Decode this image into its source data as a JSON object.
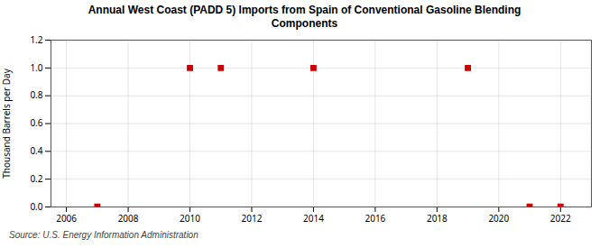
{
  "chart_data": {
    "type": "scatter",
    "title": "Annual West Coast (PADD 5) Imports from Spain of Conventional Gasoline Blending\nComponents",
    "ylabel": "Thousand Barrels per Day",
    "source": "Source: U.S. Energy Information Administration",
    "x": [
      2007,
      2010,
      2011,
      2014,
      2019,
      2021,
      2022
    ],
    "values": [
      0.003,
      1.0,
      1.0,
      1.0,
      1.0,
      0.003,
      0.003
    ],
    "color": "#cc0000",
    "marker": "square",
    "xlim": [
      2005.5,
      2023.0
    ],
    "ylim": [
      0.0,
      1.2
    ],
    "xticks": [
      2006,
      2008,
      2010,
      2012,
      2014,
      2016,
      2018,
      2020,
      2022
    ],
    "yticks": [
      {
        "value": 0.0,
        "label": "0.0"
      },
      0.2,
      0.4,
      0.6,
      0.8,
      {
        "value": 1.0,
        "label": "1.0"
      },
      1.2
    ],
    "grid": true
  }
}
